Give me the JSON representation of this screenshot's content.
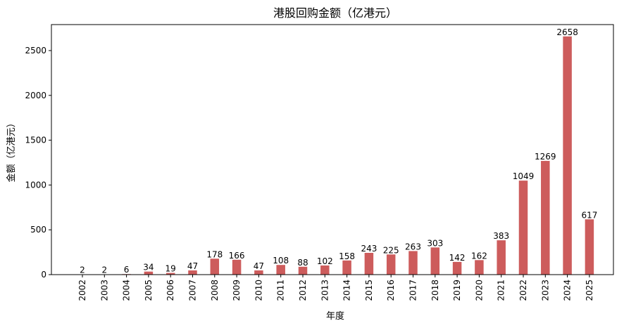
{
  "chart_data": {
    "type": "bar",
    "title": "港股回购金额（亿港元）",
    "xlabel": "年度",
    "ylabel": "金额（亿港元）",
    "ylim": [
      0,
      2790
    ],
    "yticks": [
      0,
      500,
      1000,
      1500,
      2000,
      2500
    ],
    "bar_color": "#cd5c5c",
    "grid": false,
    "categories": [
      "2002",
      "2003",
      "2004",
      "2005",
      "2006",
      "2007",
      "2008",
      "2009",
      "2010",
      "2011",
      "2012",
      "2013",
      "2014",
      "2015",
      "2016",
      "2017",
      "2018",
      "2019",
      "2020",
      "2021",
      "2022",
      "2023",
      "2024",
      "2025"
    ],
    "values": [
      2,
      2,
      6,
      34,
      19,
      47,
      178,
      166,
      47,
      108,
      88,
      102,
      158,
      243,
      225,
      263,
      303,
      142,
      162,
      383,
      1049,
      1269,
      2658,
      617
    ]
  }
}
